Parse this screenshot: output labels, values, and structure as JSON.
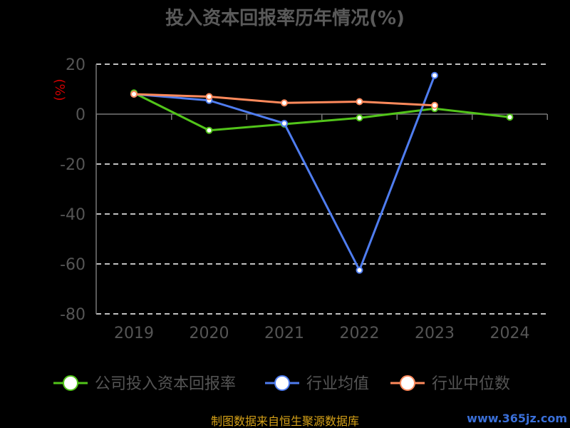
{
  "chart_data": {
    "type": "line",
    "title": "投入资本回报率历年情况(%)",
    "ylabel": "(%)",
    "categories": [
      "2019",
      "2020",
      "2021",
      "2022",
      "2023",
      "2024"
    ],
    "ylim": [
      -80,
      20
    ],
    "yticks": [
      20,
      0,
      -20,
      -40,
      -60,
      -80
    ],
    "grid": true,
    "legend_position": "bottom",
    "series": [
      {
        "name": "公司投入资本回报率",
        "color": "#52c41a",
        "values": [
          8.5,
          -6.5,
          -4.0,
          -1.5,
          2.2,
          -1.2
        ]
      },
      {
        "name": "行业均值",
        "color": "#4f7df0",
        "values": [
          8.0,
          5.5,
          -3.7,
          -62.5,
          15.5,
          null
        ]
      },
      {
        "name": "行业中位数",
        "color": "#ff8a5c",
        "values": [
          8.0,
          7.0,
          4.5,
          5.0,
          3.5,
          null
        ]
      }
    ]
  },
  "footer": {
    "source": "制图数据来自恒生聚源数据库",
    "watermark": "www.365jz.com"
  },
  "colors": {
    "title": "#5a5a5a",
    "ylabel": "#d00000",
    "axis": "#777777",
    "grid": "#ffffff",
    "tick_label": "#555555",
    "legend_text": "#555555",
    "source": "#d4a017",
    "watermark": "#3a6fd8"
  }
}
